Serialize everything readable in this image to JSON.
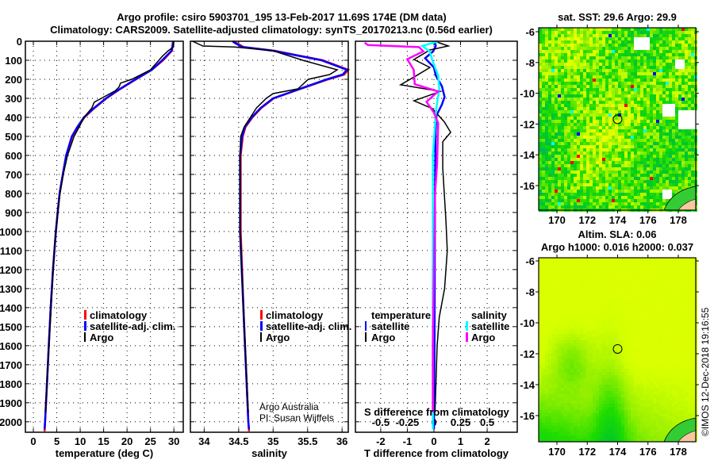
{
  "title_line1": "Argo profile: csiro 5903701_195 13-Feb-2017 11.69S 174E (DM data)",
  "title_line2": "Climatology: CARS2009. Satellite-adjusted climatology: synTS_20170213.nc (0.56d earlier)",
  "colors": {
    "climatology": "#ff0000",
    "satellite": "#0000ff",
    "argo": "#000000",
    "sal_satellite": "#00ffff",
    "sal_argo": "#ff00ff"
  },
  "legend_profiles": {
    "climatology": "climatology",
    "satellite": "satellite-adj. clim.",
    "argo": "Argo"
  },
  "legend_diff": {
    "temperature": "temperature",
    "salinity": "salinity",
    "satellite": "satellite",
    "argo": "Argo"
  },
  "credit": {
    "line1": "Argo Australia",
    "line2": "PI: Susan Wijffels"
  },
  "diff_s_label": "S difference from climatology",
  "footer": "©IMOS 12-Dec-2018 19:16:55",
  "depth_ticks": [
    "0",
    "100",
    "200",
    "300",
    "400",
    "500",
    "600",
    "700",
    "800",
    "900",
    "1000",
    "1100",
    "1200",
    "1300",
    "1400",
    "1500",
    "1600",
    "1700",
    "1800",
    "1900",
    "2000"
  ],
  "chart_data": [
    {
      "type": "line",
      "title": "",
      "xlabel": "temperature (deg C)",
      "ylabel": "",
      "xlim": [
        -1.7,
        32
      ],
      "ylim": [
        2055,
        0
      ],
      "xticks": [
        "0",
        "5",
        "10",
        "15",
        "20",
        "25",
        "30"
      ],
      "series": [
        {
          "name": "climatology",
          "depth": [
            0,
            50,
            100,
            150,
            200,
            250,
            300,
            350,
            400,
            450,
            500,
            600,
            700,
            800,
            900,
            1000,
            1200,
            1400,
            1600,
            1800,
            2000,
            2050
          ],
          "values": [
            29.8,
            29.6,
            27.7,
            25.3,
            21.9,
            18.6,
            15.6,
            13.1,
            10.9,
            9.5,
            8.3,
            7.0,
            6.3,
            5.6,
            5.2,
            4.8,
            4.2,
            3.7,
            3.3,
            2.9,
            2.5,
            2.4
          ]
        },
        {
          "name": "satellite-adj. clim.",
          "depth": [
            0,
            50,
            100,
            150,
            200,
            250,
            300,
            350,
            400,
            450,
            500,
            600,
            700,
            800,
            900,
            1000,
            1200,
            1400,
            1600,
            1800,
            2000,
            2040
          ],
          "values": [
            29.9,
            29.5,
            27.5,
            25.3,
            21.8,
            18.5,
            15.5,
            13.0,
            10.8,
            9.4,
            8.2,
            7.0,
            6.3,
            5.6,
            5.2,
            4.8,
            4.2,
            3.7,
            3.3,
            2.9,
            2.5,
            2.4
          ]
        },
        {
          "name": "Argo",
          "depth": [
            0,
            30,
            50,
            80,
            100,
            150,
            200,
            220,
            240,
            260,
            300,
            320,
            350,
            400,
            450,
            500,
            600,
            700,
            800,
            900,
            1000,
            1200,
            1400,
            1600,
            1800,
            1950
          ],
          "values": [
            29.9,
            29.9,
            28.8,
            27.5,
            26.8,
            25.0,
            21.0,
            18.6,
            18.3,
            17.5,
            14.5,
            13.0,
            12.5,
            10.8,
            9.8,
            8.7,
            7.3,
            6.4,
            5.7,
            5.2,
            4.8,
            4.2,
            3.8,
            3.3,
            2.9,
            2.6
          ]
        }
      ]
    },
    {
      "type": "line",
      "title": "",
      "xlabel": "salinity",
      "ylabel": "",
      "xlim": [
        33.8,
        36.09
      ],
      "ylim": [
        2055,
        0
      ],
      "xticks": [
        "34",
        "34.5",
        "35",
        "35.5",
        "36"
      ],
      "series": [
        {
          "name": "climatology",
          "depth": [
            0,
            10,
            30,
            50,
            100,
            150,
            175,
            200,
            250,
            300,
            350,
            400,
            450,
            500,
            600,
            1000,
            1500,
            2000,
            2050
          ],
          "values": [
            34.42,
            34.47,
            34.57,
            35.02,
            35.72,
            36.09,
            36.03,
            35.8,
            35.4,
            35.01,
            34.83,
            34.7,
            34.6,
            34.56,
            34.53,
            34.53,
            34.58,
            34.64,
            34.65
          ]
        },
        {
          "name": "satellite-adj. clim.",
          "depth": [
            0,
            10,
            30,
            50,
            100,
            150,
            175,
            200,
            250,
            300,
            350,
            400,
            450,
            500,
            600,
            1000,
            1500,
            2000,
            2040
          ],
          "values": [
            34.41,
            34.45,
            34.55,
            35.0,
            35.7,
            36.07,
            36.01,
            35.78,
            35.39,
            35.0,
            34.82,
            34.69,
            34.59,
            34.55,
            34.52,
            34.52,
            34.58,
            34.64,
            34.65
          ]
        },
        {
          "name": "Argo",
          "depth": [
            0,
            25,
            30,
            50,
            100,
            150,
            175,
            200,
            250,
            275,
            300,
            350,
            400,
            450,
            500,
            600,
            1000,
            1500,
            1950
          ],
          "values": [
            33.83,
            33.98,
            34.44,
            35.0,
            35.43,
            35.93,
            35.82,
            35.51,
            35.36,
            35.0,
            34.9,
            34.76,
            34.67,
            34.58,
            34.53,
            34.52,
            34.52,
            34.58,
            34.64
          ]
        }
      ]
    },
    {
      "type": "line",
      "title": "",
      "xlabel": "T difference from climatology",
      "ylabel": "",
      "xlim": [
        -2.95,
        3.13
      ],
      "ylim": [
        2055,
        0
      ],
      "xticks": [
        "-2",
        "-1",
        "0",
        "1",
        "2"
      ],
      "s_axis": {
        "label": "S difference from climatology",
        "xlim": [
          -0.7375,
          0.7825
        ],
        "ticks": [
          "-0.5",
          "-0.25",
          "0",
          "0.25",
          "0.5"
        ]
      },
      "series": [
        {
          "name": "temperature satellite",
          "axis": "T",
          "depth": [
            0,
            25,
            53,
            89,
            138,
            180,
            236,
            292,
            333,
            389,
            472,
            800,
            1200,
            1600,
            2000,
            2040
          ],
          "values": [
            0.03,
            0.07,
            -0.03,
            -0.33,
            0.0,
            0.07,
            0.3,
            0.4,
            0.3,
            0.1,
            0.06,
            0.04,
            0.03,
            0.02,
            0.0,
            0.0
          ]
        },
        {
          "name": "temperature Argo",
          "axis": "T",
          "depth": [
            0,
            25,
            46,
            96,
            138,
            180,
            229,
            264,
            313,
            354,
            424,
            479,
            528,
            667,
            806,
            944,
            1100,
            1300,
            1450,
            1600,
            1900,
            1950
          ],
          "values": [
            0.03,
            0.54,
            -0.15,
            -0.75,
            -0.15,
            -0.65,
            -1.25,
            0.24,
            -0.75,
            -0.06,
            0.39,
            0.63,
            0.33,
            0.33,
            0.39,
            0.45,
            0.5,
            0.4,
            0.2,
            0.12,
            0.05,
            0.04
          ]
        },
        {
          "name": "salinity satellite",
          "axis": "S",
          "depth": [
            0,
            25,
            53,
            108,
            180,
            250,
            361,
            600,
            1000,
            1500,
            2040
          ],
          "values": [
            0.04,
            -0.11,
            -0.04,
            -0.01,
            0.04,
            0.05,
            0.02,
            -0.01,
            -0.01,
            -0.01,
            -0.01
          ]
        },
        {
          "name": "salinity Argo",
          "axis": "S",
          "depth": [
            8,
            20,
            31,
            53,
            94,
            150,
            226,
            264,
            318,
            375,
            430,
            640,
            806,
            1200,
            1600,
            1950
          ],
          "values": [
            -0.65,
            -0.62,
            -0.14,
            -0.1,
            -0.25,
            -0.19,
            -0.18,
            0.04,
            -0.07,
            0.0,
            0.04,
            0.03,
            0.01,
            0.0,
            -0.01,
            -0.01
          ]
        }
      ]
    }
  ],
  "maps": [
    {
      "title": "sat. SST: 29.6 Argo: 29.9",
      "lon_ticks": [
        "170",
        "172",
        "174",
        "176",
        "178"
      ],
      "lat_ticks": [
        "-6",
        "-8",
        "-10",
        "-12",
        "-14",
        "-16"
      ],
      "argo_lon": 174,
      "argo_lat": -11.69
    },
    {
      "title_line1": "Altim. SLA: 0.06",
      "title_line2": "Argo h1000: 0.016 h2000: 0.037",
      "lon_ticks": [
        "170",
        "172",
        "174",
        "176",
        "178"
      ],
      "lat_ticks": [
        "-6",
        "-8",
        "-10",
        "-12",
        "-14",
        "-16"
      ],
      "argo_lon": 174,
      "argo_lat": -11.69
    }
  ]
}
